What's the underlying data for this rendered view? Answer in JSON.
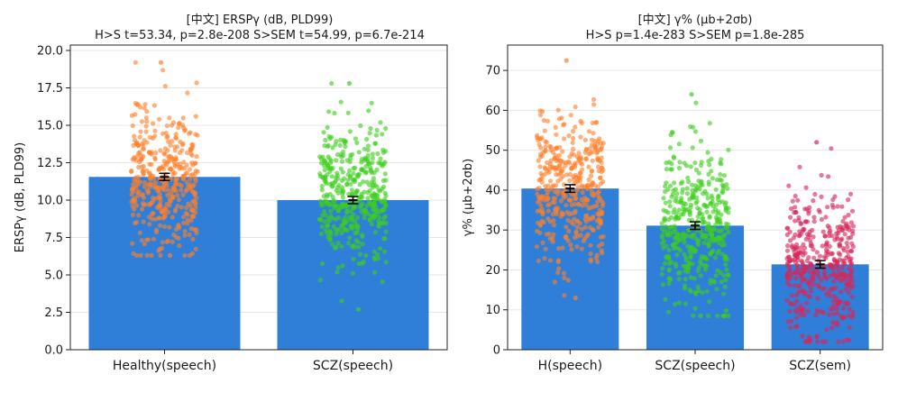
{
  "chart_data": [
    {
      "type": "bar",
      "title_line1": "[中文] ERSPγ (dB, PLD99)",
      "title_line2": "H>S t=53.34, p=2.8e-208 S>SEM t=54.99, p=6.7e-214",
      "ylabel": "ERSPγ (dB, PLD99)",
      "xlabel": "",
      "ylim": [
        0,
        20
      ],
      "yticks": [
        "0.0",
        "2.5",
        "5.0",
        "7.5",
        "10.0",
        "12.5",
        "15.0",
        "17.5",
        "20.0"
      ],
      "grid": "horizontal",
      "categories": [
        "Healthy(speech)",
        "SCZ(speech)"
      ],
      "values": [
        11.55,
        10.0
      ],
      "error": [
        0.12,
        0.12
      ],
      "points": [
        {
          "category": "Healthy(speech)",
          "mean": 11.5,
          "sd": 2.4,
          "min": 6.3,
          "max": 19.2,
          "n": 420,
          "color": "#ff7f2a"
        },
        {
          "category": "SCZ(speech)",
          "mean": 10.1,
          "sd": 2.4,
          "min": 2.7,
          "max": 17.8,
          "n": 420,
          "color": "#3ecf1c"
        }
      ],
      "bar_color": "#2f7fd8"
    },
    {
      "type": "bar",
      "title_line1": "[中文] γ% (μb+2σb)",
      "title_line2": "H>S p=1.4e-283  S>SEM p=1.8e-285",
      "ylabel": "γ% (μb+2σb)",
      "xlabel": "",
      "ylim": [
        0,
        75
      ],
      "yticks": [
        "0",
        "10",
        "20",
        "30",
        "40",
        "50",
        "60",
        "70"
      ],
      "grid": "horizontal",
      "categories": [
        "H(speech)",
        "SCZ(speech)",
        "SCZ(sem)"
      ],
      "values": [
        40.4,
        31.1,
        21.4
      ],
      "error": [
        0.5,
        0.5,
        0.5
      ],
      "points": [
        {
          "category": "H(speech)",
          "mean": 40.5,
          "sd": 9.5,
          "min": 13.0,
          "max": 72.5,
          "n": 420,
          "color": "#ff7f2a"
        },
        {
          "category": "SCZ(speech)",
          "mean": 31.0,
          "sd": 9.5,
          "min": 8.5,
          "max": 64.0,
          "n": 420,
          "color": "#3ecf1c"
        },
        {
          "category": "SCZ(sem)",
          "mean": 21.5,
          "sd": 8.5,
          "min": 2.0,
          "max": 52.0,
          "n": 420,
          "color": "#d6275a"
        }
      ],
      "bar_color": "#2f7fd8"
    }
  ]
}
